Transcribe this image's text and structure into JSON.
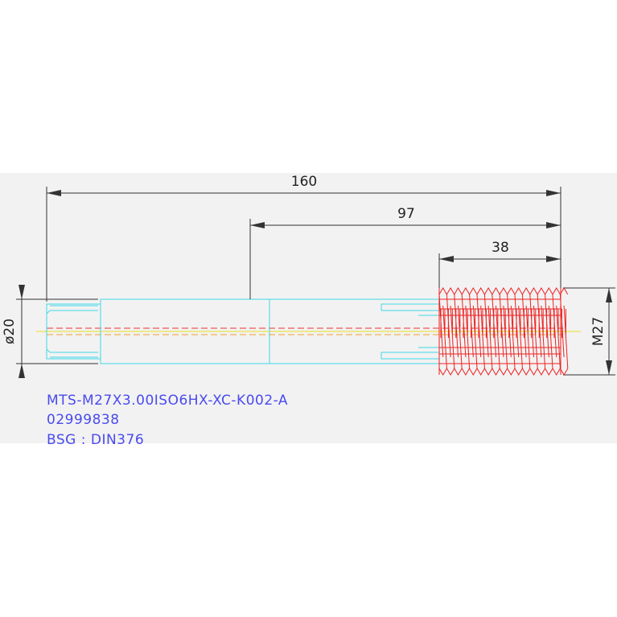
{
  "dimensions": {
    "total_length": "160",
    "shank_to_end": "97",
    "thread_length": "38",
    "shank_diameter": "ø20",
    "thread_size": "M27"
  },
  "labels": [
    "MTS-M27X3.00ISO6HX-XC-K002-A",
    "02999838",
    "BSG  :  DIN376"
  ]
}
